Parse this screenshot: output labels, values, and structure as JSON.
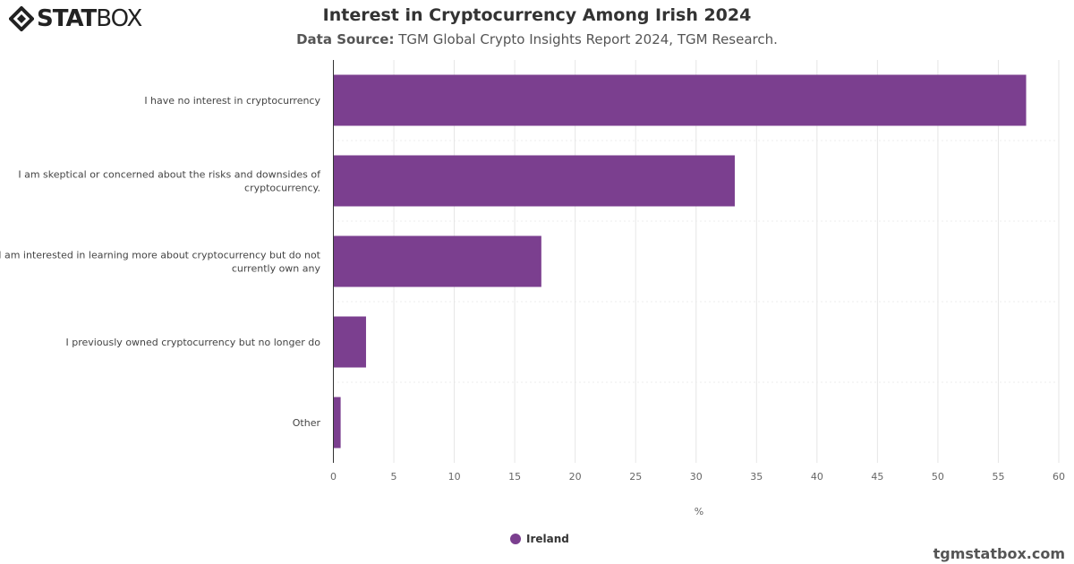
{
  "logo": {
    "bold": "STAT",
    "light": "BOX"
  },
  "header": {
    "title": "Interest in Cryptocurrency Among Irish 2024",
    "source_label": "Data Source:",
    "source_text": "TGM Global Crypto Insights Report 2024, TGM Research."
  },
  "watermark": "tgmstatbox.com",
  "colors": {
    "bar": "#7b3f8f"
  },
  "chart_data": {
    "type": "bar",
    "orientation": "horizontal",
    "categories": [
      [
        "I have no interest in cryptocurrency"
      ],
      [
        "I am skeptical or concerned about the risks and downsides of",
        "cryptocurrency."
      ],
      [
        "I am interested in learning more about cryptocurrency but do not",
        "currently own any"
      ],
      [
        "I previously owned cryptocurrency but no longer do"
      ],
      [
        "Other"
      ]
    ],
    "series": [
      {
        "name": "Ireland",
        "values": [
          57.3,
          33.2,
          17.2,
          2.7,
          0.6
        ]
      }
    ],
    "xlabel": "%",
    "xlim": [
      0,
      60
    ],
    "xticks": [
      0,
      5,
      10,
      15,
      20,
      25,
      30,
      35,
      40,
      45,
      50,
      55,
      60
    ],
    "grid": true,
    "legend": "bottom"
  }
}
